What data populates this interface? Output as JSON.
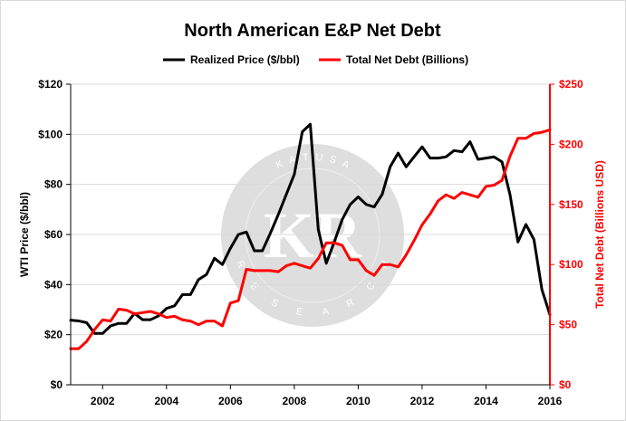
{
  "chart_data": {
    "type": "line",
    "title": "North American E&P Net Debt",
    "legend": {
      "placement": "top-center",
      "entries": [
        "Realized Price ($/bbl)",
        "Total Net Debt (Billions)"
      ]
    },
    "x_axis": {
      "range": [
        2001,
        2016
      ],
      "tick_values": [
        2002,
        2004,
        2006,
        2008,
        2010,
        2012,
        2014,
        2016
      ],
      "tick_labels": [
        "2002",
        "2004",
        "2006",
        "2008",
        "2010",
        "2012",
        "2014",
        "2016"
      ]
    },
    "y_left": {
      "label": "WTI Price ($/bbl)",
      "range": [
        0,
        120
      ],
      "tick_values": [
        0,
        20,
        40,
        60,
        80,
        100,
        120
      ],
      "tick_labels": [
        "$0",
        "$20",
        "$40",
        "$60",
        "$80",
        "$100",
        "$120"
      ],
      "color": "#000000"
    },
    "y_right": {
      "label": "Total Net Debt (Billions USD)",
      "range": [
        0,
        250
      ],
      "tick_values": [
        0,
        50,
        100,
        150,
        200,
        250
      ],
      "tick_labels": [
        "$0",
        "$50",
        "$100",
        "$150",
        "$200",
        "$250"
      ],
      "color": "#ff0000"
    },
    "grid": {
      "horizontal": true,
      "vertical": false
    },
    "series": [
      {
        "name": "Realized Price ($/bbl)",
        "axis": "left",
        "color": "#000000",
        "x": [
          2001.0,
          2001.25,
          2001.5,
          2001.75,
          2002.0,
          2002.25,
          2002.5,
          2002.75,
          2003.0,
          2003.25,
          2003.5,
          2003.75,
          2004.0,
          2004.25,
          2004.5,
          2004.75,
          2005.0,
          2005.25,
          2005.5,
          2005.75,
          2006.0,
          2006.25,
          2006.5,
          2006.75,
          2007.0,
          2007.25,
          2007.5,
          2007.75,
          2008.0,
          2008.25,
          2008.5,
          2008.75,
          2009.0,
          2009.25,
          2009.5,
          2009.75,
          2010.0,
          2010.25,
          2010.5,
          2010.75,
          2011.0,
          2011.25,
          2011.5,
          2011.75,
          2012.0,
          2012.25,
          2012.5,
          2012.75,
          2013.0,
          2013.25,
          2013.5,
          2013.75,
          2014.0,
          2014.25,
          2014.5,
          2014.75,
          2015.0,
          2015.25,
          2015.5,
          2015.75,
          2016.0
        ],
        "values": [
          25.8,
          25.5,
          24.8,
          20.5,
          20.5,
          23.5,
          24.5,
          24.5,
          28.5,
          26.0,
          26.0,
          27.5,
          30.5,
          31.5,
          36.0,
          36.0,
          42.0,
          44.0,
          50.5,
          48.0,
          54.5,
          60.0,
          61.0,
          53.5,
          53.5,
          60.5,
          68.0,
          76.0,
          84.0,
          101.0,
          104.0,
          62.0,
          48.5,
          57.0,
          66.0,
          72.0,
          75.0,
          72.0,
          71.0,
          76.0,
          87.0,
          92.5,
          87.0,
          91.0,
          95.0,
          90.5,
          90.5,
          91.0,
          93.5,
          93.0,
          97.0,
          90.0,
          90.5,
          91.0,
          89.0,
          76.0,
          57.0,
          64.0,
          58.0,
          38.0,
          28.0
        ]
      },
      {
        "name": "Total Net Debt (Billions)",
        "axis": "right",
        "color": "#ff0000",
        "x": [
          2001.0,
          2001.25,
          2001.5,
          2001.75,
          2002.0,
          2002.25,
          2002.5,
          2002.75,
          2003.0,
          2003.25,
          2003.5,
          2003.75,
          2004.0,
          2004.25,
          2004.5,
          2004.75,
          2005.0,
          2005.25,
          2005.5,
          2005.75,
          2006.0,
          2006.25,
          2006.5,
          2006.75,
          2007.0,
          2007.25,
          2007.5,
          2007.75,
          2008.0,
          2008.25,
          2008.5,
          2008.75,
          2009.0,
          2009.25,
          2009.5,
          2009.75,
          2010.0,
          2010.25,
          2010.5,
          2010.75,
          2011.0,
          2011.25,
          2011.5,
          2011.75,
          2012.0,
          2012.25,
          2012.5,
          2012.75,
          2013.0,
          2013.25,
          2013.5,
          2013.75,
          2014.0,
          2014.25,
          2014.5,
          2014.75,
          2015.0,
          2015.25,
          2015.5,
          2015.75,
          2016.0
        ],
        "values": [
          30,
          30,
          36,
          46,
          54,
          53,
          63,
          62,
          59,
          60,
          61,
          59,
          56,
          57,
          54,
          53,
          50,
          53,
          53,
          49,
          68,
          70,
          96,
          95,
          95,
          95,
          94,
          99,
          101,
          99,
          97,
          105,
          118,
          118,
          116,
          104,
          104,
          95,
          91,
          100,
          100,
          98,
          108,
          120,
          133,
          142,
          153,
          158,
          155,
          160,
          158,
          156,
          165,
          166,
          170,
          190,
          205,
          205,
          209,
          210,
          212
        ]
      }
    ],
    "watermark": {
      "letters_top": "KATUSA",
      "monogram": "KR",
      "letters_bottom": "RESEARCH"
    }
  }
}
